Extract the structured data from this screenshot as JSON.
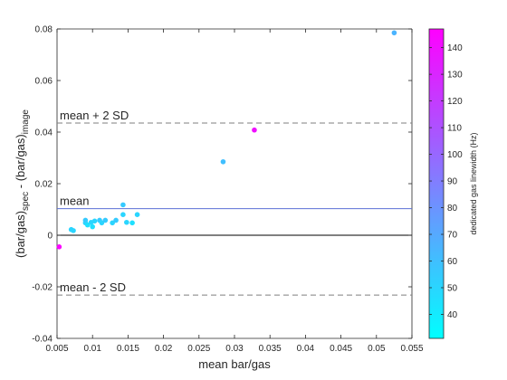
{
  "chart_data": {
    "type": "scatter",
    "title": "",
    "xlabel": "mean bar/gas",
    "ylabel": {
      "parts": [
        {
          "text": "(bar/gas)",
          "style": "normal"
        },
        {
          "text": "spec",
          "style": "sub"
        },
        {
          "text": " - (bar/gas)",
          "style": "normal"
        },
        {
          "text": "image",
          "style": "sub"
        }
      ]
    },
    "xlim": [
      0.005,
      0.055
    ],
    "ylim": [
      -0.04,
      0.08
    ],
    "xticks": [
      0.005,
      0.01,
      0.015,
      0.02,
      0.025,
      0.03,
      0.035,
      0.04,
      0.045,
      0.05,
      0.055
    ],
    "xtick_labels": [
      "0.005",
      "0.01",
      "0.015",
      "0.02",
      "0.025",
      "0.03",
      "0.035",
      "0.04",
      "0.045",
      "0.05",
      "0.055"
    ],
    "yticks": [
      -0.04,
      -0.02,
      0,
      0.02,
      0.04,
      0.06,
      0.08
    ],
    "ytick_labels": [
      "-0.04",
      "-0.02",
      "0",
      "0.02",
      "0.04",
      "0.06",
      "0.08"
    ],
    "grid": false,
    "reference_lines": [
      {
        "label": "mean + 2 SD",
        "y": 0.0435,
        "style": "dashed",
        "color": "#7f7f7f"
      },
      {
        "label": "mean",
        "y": 0.0103,
        "style": "solid",
        "color": "#5b6fd6"
      },
      {
        "label": "mean - 2 SD",
        "y": -0.0232,
        "style": "dashed",
        "color": "#7f7f7f"
      },
      {
        "label": "",
        "y": 0,
        "style": "solid",
        "color": "#000000"
      }
    ],
    "colorbar": {
      "label": "dedicated gas linewidth (Hz)",
      "range": [
        31,
        147
      ],
      "ticks": [
        40,
        50,
        60,
        70,
        80,
        90,
        100,
        110,
        120,
        130,
        140
      ],
      "tick_labels": [
        "40",
        "50",
        "60",
        "70",
        "80",
        "90",
        "100",
        "110",
        "120",
        "130",
        "140"
      ],
      "colormap": "cool",
      "color_low": "#00ffff",
      "color_high": "#ff00ff"
    },
    "points": [
      {
        "x": 0.0053,
        "y": -0.0045,
        "c": 145
      },
      {
        "x": 0.007,
        "y": 0.0022,
        "c": 50
      },
      {
        "x": 0.0073,
        "y": 0.0018,
        "c": 50
      },
      {
        "x": 0.009,
        "y": 0.0048,
        "c": 50
      },
      {
        "x": 0.009,
        "y": 0.0058,
        "c": 55
      },
      {
        "x": 0.0093,
        "y": 0.004,
        "c": 45
      },
      {
        "x": 0.0098,
        "y": 0.005,
        "c": 50
      },
      {
        "x": 0.01,
        "y": 0.0033,
        "c": 45
      },
      {
        "x": 0.0103,
        "y": 0.0055,
        "c": 50
      },
      {
        "x": 0.011,
        "y": 0.0058,
        "c": 55
      },
      {
        "x": 0.0113,
        "y": 0.0048,
        "c": 50
      },
      {
        "x": 0.0118,
        "y": 0.0058,
        "c": 55
      },
      {
        "x": 0.0128,
        "y": 0.0048,
        "c": 50
      },
      {
        "x": 0.0133,
        "y": 0.0058,
        "c": 55
      },
      {
        "x": 0.0143,
        "y": 0.008,
        "c": 50
      },
      {
        "x": 0.0143,
        "y": 0.0118,
        "c": 55
      },
      {
        "x": 0.0148,
        "y": 0.005,
        "c": 50
      },
      {
        "x": 0.0156,
        "y": 0.0048,
        "c": 45
      },
      {
        "x": 0.0163,
        "y": 0.008,
        "c": 50
      },
      {
        "x": 0.0284,
        "y": 0.0285,
        "c": 60
      },
      {
        "x": 0.0328,
        "y": 0.0408,
        "c": 140
      },
      {
        "x": 0.0525,
        "y": 0.0785,
        "c": 65
      }
    ]
  }
}
